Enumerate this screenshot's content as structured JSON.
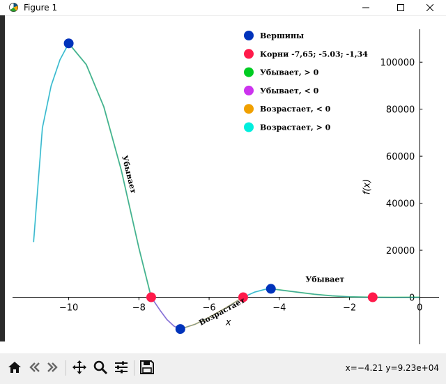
{
  "window": {
    "title": "Figure 1",
    "minimize_icon": "minimize-icon",
    "maximize_icon": "maximize-icon",
    "close_icon": "close-icon"
  },
  "toolbar": {
    "items": [
      "home-icon",
      "back-icon",
      "forward-icon",
      "pan-icon",
      "zoom-icon",
      "configure-subplots-icon",
      "save-icon"
    ],
    "coords": "x=−4.21 y=9.23e+04"
  },
  "chart_data": {
    "type": "line",
    "xlabel": "x",
    "ylabel": "f(x)",
    "xlim": [
      -11.6,
      0.55
    ],
    "ylim": [
      -20000,
      114000
    ],
    "xticks": [
      -10,
      -8,
      -6,
      -4,
      -2,
      0
    ],
    "xtick_labels": [
      "−10",
      "−8",
      "−6",
      "−4",
      "−2",
      "0"
    ],
    "yticks": [
      0,
      20000,
      40000,
      60000,
      80000,
      100000
    ],
    "ytick_labels": [
      "0",
      "20000",
      "40000",
      "60000",
      "80000",
      "100000"
    ],
    "legend_position": "top-right",
    "series": [
      {
        "name": "Вершины",
        "kind": "points",
        "color": "#0033bb",
        "x": [
          -10.0,
          -6.82,
          -4.24
        ],
        "y": [
          108000,
          -13500,
          3600
        ]
      },
      {
        "name": "Корни -7,65; -5.03; -1,34",
        "kind": "points",
        "color": "#ff1a4a",
        "x": [
          -7.65,
          -5.03,
          -1.34
        ],
        "y": [
          0,
          0,
          0
        ]
      },
      {
        "name": "Убывает, > 0",
        "kind": "segment",
        "color": "#00cc22",
        "x": [
          -10.0,
          -9.5,
          -9.0,
          -8.5,
          -8.0,
          -7.65,
          -4.24,
          -3.5,
          -3.0,
          -2.5,
          -2.0,
          -1.34,
          -0.8,
          0.0
        ],
        "y": [
          108000,
          99000,
          81000,
          54000,
          21000,
          0,
          3600,
          2200,
          1300,
          600,
          180,
          0,
          -30,
          0
        ]
      },
      {
        "name": "Убывает, < 0",
        "kind": "segment",
        "color": "#cc33ee",
        "x": [
          -7.65,
          -7.4,
          -7.2,
          -7.0,
          -6.82
        ],
        "y": [
          0,
          -5500,
          -9500,
          -12300,
          -13500
        ]
      },
      {
        "name": "Возрастает, < 0",
        "kind": "segment",
        "color": "#f0a000",
        "x": [
          -6.82,
          -6.4,
          -6.0,
          -5.5,
          -5.03
        ],
        "y": [
          -13500,
          -11500,
          -8600,
          -4300,
          0
        ]
      },
      {
        "name": "Возрастает, > 0",
        "kind": "segment",
        "color": "#00eedd",
        "x": [
          -11.0,
          -10.75,
          -10.5,
          -10.25,
          -10.0,
          -5.03,
          -4.7,
          -4.4,
          -4.24
        ],
        "y": [
          23500,
          72000,
          90000,
          101000,
          108000,
          0,
          2200,
          3400,
          3600
        ]
      }
    ],
    "annotations": [
      {
        "text": "Убывает",
        "x": -8.35,
        "y": 52000,
        "rotation": 76
      },
      {
        "text": "Возрастает",
        "x": -5.6,
        "y": -7000,
        "rotation": -28
      },
      {
        "text": "Убывает",
        "x": -2.7,
        "y": 6500,
        "rotation": 0
      }
    ]
  }
}
